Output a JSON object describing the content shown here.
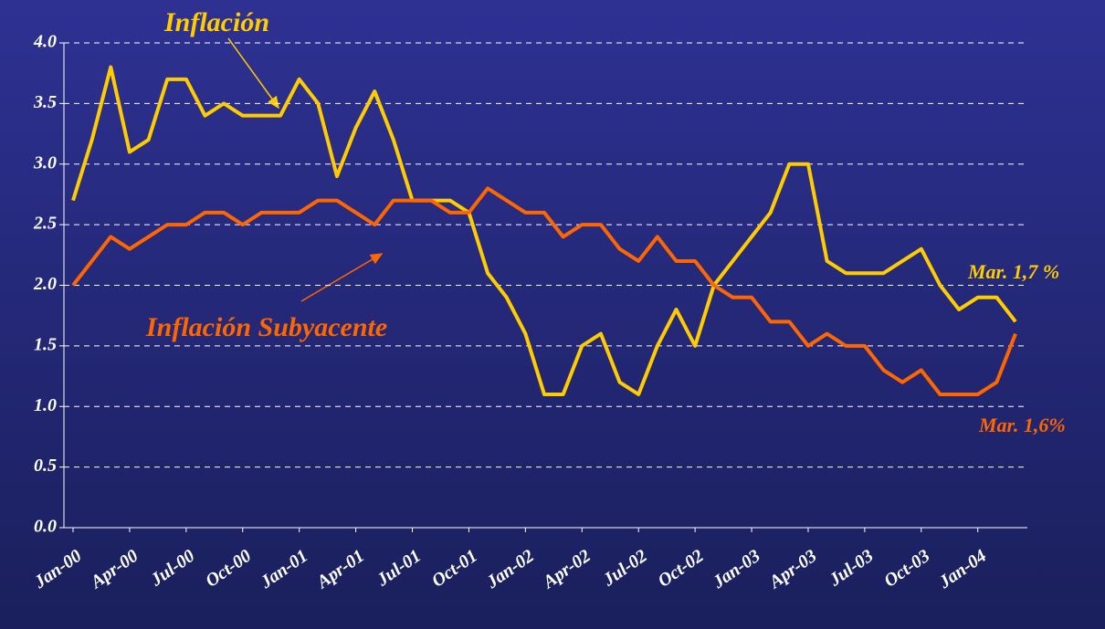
{
  "chart_data": {
    "type": "line",
    "annotations": [
      "Inflación",
      "Inflación Subyacente",
      "Mar. 1,7 %",
      "Mar. 1,6%"
    ],
    "categories": [
      "Jan-00",
      null,
      null,
      "Apr-00",
      null,
      null,
      "Jul-00",
      null,
      null,
      "Oct-00",
      null,
      null,
      "Jan-01",
      null,
      null,
      "Apr-01",
      null,
      null,
      "Jul-01",
      null,
      null,
      "Oct-01",
      null,
      null,
      "Jan-02",
      null,
      null,
      "Apr-02",
      null,
      null,
      "Jul-02",
      null,
      null,
      "Oct-02",
      null,
      null,
      "Jan-03",
      null,
      null,
      "Apr-03",
      null,
      null,
      "Jul-03",
      null,
      null,
      "Oct-03",
      null,
      null,
      "Jan-04",
      null,
      null
    ],
    "series": [
      {
        "name": "Inflación",
        "color": "#ffcc00",
        "values": [
          2.7,
          3.2,
          3.8,
          3.1,
          3.2,
          3.7,
          3.7,
          3.4,
          3.5,
          3.4,
          3.4,
          3.4,
          3.7,
          3.5,
          2.9,
          3.3,
          3.6,
          3.2,
          2.7,
          2.7,
          2.7,
          2.6,
          2.1,
          1.9,
          1.6,
          1.1,
          1.1,
          1.5,
          1.6,
          1.2,
          1.1,
          1.5,
          1.8,
          1.5,
          2.0,
          2.2,
          2.4,
          2.6,
          3.0,
          3.0,
          2.2,
          2.1,
          2.1,
          2.1,
          2.2,
          2.3,
          2.0,
          1.8,
          1.9,
          1.9,
          1.7
        ]
      },
      {
        "name": "Inflación Subyacente",
        "color": "#ff6600",
        "values": [
          2.0,
          2.2,
          2.4,
          2.3,
          2.4,
          2.5,
          2.5,
          2.6,
          2.6,
          2.5,
          2.6,
          2.6,
          2.6,
          2.7,
          2.7,
          2.6,
          2.5,
          2.7,
          2.7,
          2.7,
          2.6,
          2.6,
          2.8,
          2.7,
          2.6,
          2.6,
          2.4,
          2.5,
          2.5,
          2.3,
          2.2,
          2.4,
          2.2,
          2.2,
          2.0,
          1.9,
          1.9,
          1.7,
          1.7,
          1.5,
          1.6,
          1.5,
          1.5,
          1.3,
          1.2,
          1.3,
          1.1,
          1.1,
          1.1,
          1.2,
          1.6
        ]
      }
    ],
    "ylim": [
      0,
      4
    ],
    "yticks": [
      {
        "value": 0,
        "label": "0.0"
      },
      {
        "value": 0.5,
        "label": "0.5"
      },
      {
        "value": 1,
        "label": "1.0"
      },
      {
        "value": 1.5,
        "label": "1.5"
      },
      {
        "value": 2,
        "label": "2.0"
      },
      {
        "value": 2.5,
        "label": "2.5"
      },
      {
        "value": 3,
        "label": "3.0"
      },
      {
        "value": 3.5,
        "label": "3.5"
      },
      {
        "value": 4,
        "label": "4.0"
      }
    ],
    "grid": true
  }
}
